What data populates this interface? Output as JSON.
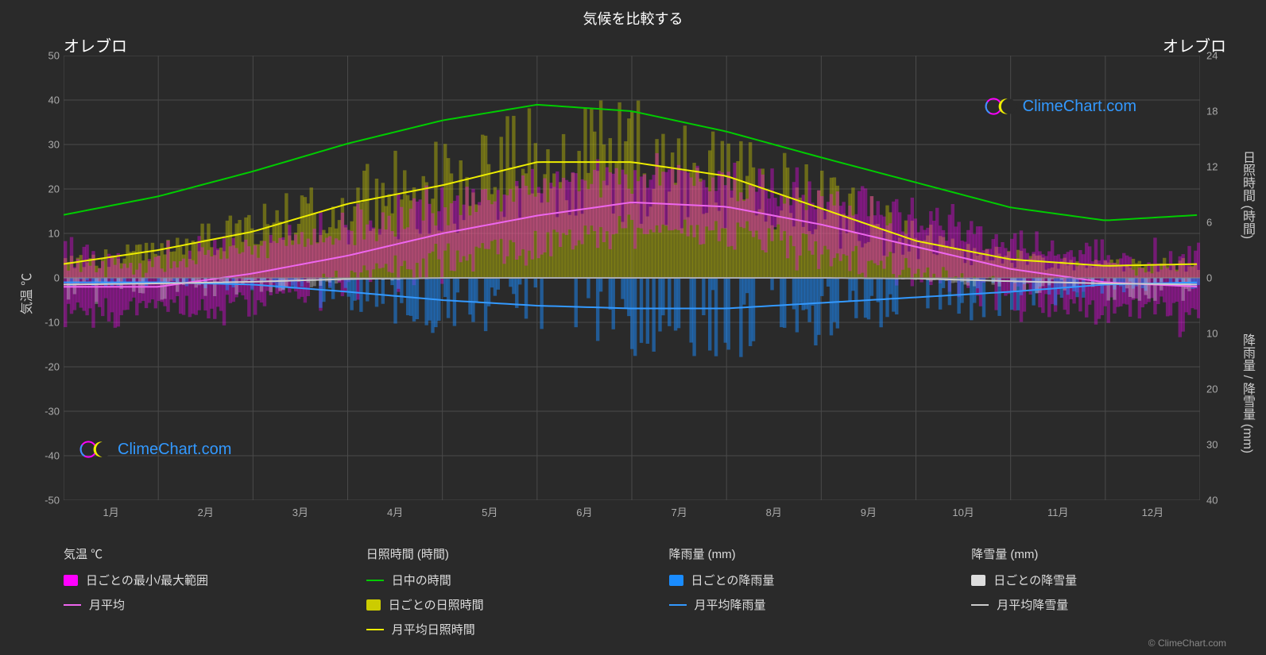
{
  "title": "気候を比較する",
  "location_left": "オレブロ",
  "location_right": "オレブロ",
  "brand_text": "ClimeChart.com",
  "footer_text": "© ClimeChart.com",
  "chart": {
    "type": "climate-composite",
    "background_color": "#2a2a2a",
    "grid_color": "#4a4a4a",
    "text_color": "#cccccc",
    "axis_left": {
      "label": "気温 ℃",
      "min": -50,
      "max": 50,
      "step": 10,
      "ticks": [
        50,
        40,
        30,
        20,
        10,
        0,
        -10,
        -20,
        -30,
        -40,
        -50
      ]
    },
    "axis_right_top": {
      "label": "日照時間 (時間)",
      "min": 0,
      "max": 24,
      "step": 6,
      "ticks": [
        24,
        18,
        12,
        6,
        0
      ]
    },
    "axis_right_bottom": {
      "label": "降雨量 / 降雪量 (mm)",
      "min": 0,
      "max": 40,
      "step": 10,
      "ticks": [
        0,
        10,
        20,
        30,
        40
      ]
    },
    "months": [
      "1月",
      "2月",
      "3月",
      "4月",
      "5月",
      "6月",
      "7月",
      "8月",
      "9月",
      "10月",
      "11月",
      "12月"
    ],
    "series": {
      "daylight_hours": {
        "label": "日中の時間",
        "color": "#00cc00",
        "stroke_width": 2,
        "values": [
          6.8,
          8.8,
          11.5,
          14.5,
          17,
          18.7,
          18,
          15.8,
          13,
          10.3,
          7.6,
          6.2
        ]
      },
      "monthly_avg_sun": {
        "label": "月平均日照時間",
        "color": "#eeee00",
        "stroke_width": 2,
        "values": [
          1.5,
          3,
          5,
          8,
          10,
          12.5,
          12.5,
          11,
          7.5,
          4,
          2,
          1.3
        ]
      },
      "monthly_avg_temp": {
        "label": "月平均",
        "color": "#ee66ee",
        "stroke_width": 2,
        "values": [
          -2,
          -2,
          1,
          5,
          10,
          14,
          17,
          16,
          12,
          7,
          2,
          -1
        ]
      },
      "monthly_avg_rain": {
        "label": "月平均降雨量",
        "color": "#3399ff",
        "stroke_width": 2,
        "values": [
          0.8,
          0.8,
          1.2,
          2.5,
          4,
          5,
          5.5,
          5.5,
          4.5,
          3.5,
          2.5,
          1.2
        ]
      },
      "monthly_avg_snow": {
        "label": "月平均降雪量",
        "color": "#cccccc",
        "stroke_width": 2,
        "values": [
          1.2,
          1.0,
          0.7,
          0.2,
          0,
          0,
          0,
          0,
          0,
          0.1,
          0.6,
          1.0
        ]
      },
      "temp_range_daily": {
        "label": "日ごとの最小/最大範囲",
        "color": "#ff00ff",
        "opacity": 0.35
      },
      "sun_daily": {
        "label": "日ごとの日照時間",
        "color": "#cccc00",
        "opacity": 0.4
      },
      "rain_daily": {
        "label": "日ごとの降雨量",
        "color": "#1a8cff",
        "opacity": 0.5
      },
      "snow_daily": {
        "label": "日ごとの降雪量",
        "color": "#dddddd",
        "opacity": 0.35
      }
    }
  },
  "legend_groups": [
    {
      "title": "気温 ℃",
      "items": [
        {
          "kind": "swatch",
          "color": "#ff00ff",
          "label": "日ごとの最小/最大範囲"
        },
        {
          "kind": "line",
          "color": "#ee66ee",
          "label": "月平均"
        }
      ]
    },
    {
      "title": "日照時間 (時間)",
      "items": [
        {
          "kind": "line",
          "color": "#00cc00",
          "label": "日中の時間"
        },
        {
          "kind": "swatch",
          "color": "#cccc00",
          "label": "日ごとの日照時間"
        },
        {
          "kind": "line",
          "color": "#eeee00",
          "label": "月平均日照時間"
        }
      ]
    },
    {
      "title": "降雨量 (mm)",
      "items": [
        {
          "kind": "swatch",
          "color": "#1a8cff",
          "label": "日ごとの降雨量"
        },
        {
          "kind": "line",
          "color": "#3399ff",
          "label": "月平均降雨量"
        }
      ]
    },
    {
      "title": "降雪量 (mm)",
      "items": [
        {
          "kind": "swatch",
          "color": "#dddddd",
          "label": "日ごとの降雪量"
        },
        {
          "kind": "line",
          "color": "#cccccc",
          "label": "月平均降雪量"
        }
      ]
    }
  ]
}
